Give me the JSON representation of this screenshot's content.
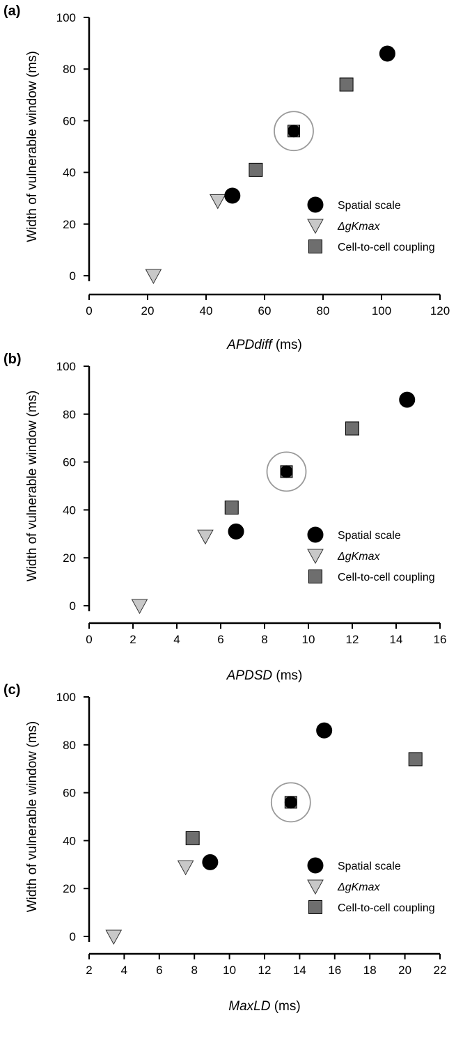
{
  "chart_data": [
    {
      "panel": "(a)",
      "type": "scatter",
      "xlabel_italic": "APDdiff",
      "xlabel_unit": " (ms)",
      "ylabel": "Width of vulnerable window (ms)",
      "xlim": [
        0,
        120
      ],
      "ylim": [
        0,
        100
      ],
      "xticks": [
        0,
        20,
        40,
        60,
        80,
        100,
        120
      ],
      "yticks": [
        0,
        20,
        40,
        60,
        80,
        100
      ],
      "grid": false,
      "legend_position": "lower-right",
      "series": [
        {
          "name": "Spatial scale",
          "marker": "circle",
          "color": "#000000",
          "x": [
            49,
            70,
            102
          ],
          "y": [
            31,
            56,
            86
          ]
        },
        {
          "name": "ΔgKmax",
          "marker": "triangle-down",
          "color": "#c8c8c8",
          "x": [
            22,
            44,
            70
          ],
          "y": [
            0,
            29,
            56
          ]
        },
        {
          "name": "Cell-to-cell coupling",
          "marker": "square",
          "color": "#6e6e6e",
          "x": [
            57,
            70,
            88
          ],
          "y": [
            41,
            56,
            74
          ]
        }
      ],
      "highlight": {
        "marker": "circle-outline",
        "x": 70,
        "y": 56
      }
    },
    {
      "panel": "(b)",
      "type": "scatter",
      "xlabel_italic": "APDSD",
      "xlabel_unit": " (ms)",
      "ylabel": "Width of vulnerable window (ms)",
      "xlim": [
        0,
        16
      ],
      "ylim": [
        0,
        100
      ],
      "xticks": [
        0,
        2,
        4,
        6,
        8,
        10,
        12,
        14,
        16
      ],
      "yticks": [
        0,
        20,
        40,
        60,
        80,
        100
      ],
      "grid": false,
      "legend_position": "lower-right",
      "series": [
        {
          "name": "Spatial scale",
          "marker": "circle",
          "color": "#000000",
          "x": [
            6.7,
            9.0,
            14.5
          ],
          "y": [
            31,
            56,
            86
          ]
        },
        {
          "name": "ΔgKmax",
          "marker": "triangle-down",
          "color": "#c8c8c8",
          "x": [
            2.3,
            5.3,
            9.0
          ],
          "y": [
            0,
            29,
            56
          ]
        },
        {
          "name": "Cell-to-cell coupling",
          "marker": "square",
          "color": "#6e6e6e",
          "x": [
            6.5,
            9.0,
            12.0
          ],
          "y": [
            41,
            56,
            74
          ]
        }
      ],
      "highlight": {
        "marker": "circle-outline",
        "x": 9.0,
        "y": 56
      }
    },
    {
      "panel": "(c)",
      "type": "scatter",
      "xlabel_italic": "MaxLD",
      "xlabel_unit": " (ms)",
      "ylabel": "Width of vulnerable window (ms)",
      "xlim": [
        2,
        22
      ],
      "ylim": [
        0,
        100
      ],
      "xticks": [
        2,
        4,
        6,
        8,
        10,
        12,
        14,
        16,
        18,
        20,
        22
      ],
      "yticks": [
        0,
        20,
        40,
        60,
        80,
        100
      ],
      "grid": false,
      "legend_position": "lower-right",
      "series": [
        {
          "name": "Spatial scale",
          "marker": "circle",
          "color": "#000000",
          "x": [
            8.9,
            13.5,
            15.4
          ],
          "y": [
            31,
            56,
            86
          ]
        },
        {
          "name": "ΔgKmax",
          "marker": "triangle-down",
          "color": "#c8c8c8",
          "x": [
            3.4,
            7.5,
            13.5
          ],
          "y": [
            0,
            29,
            56
          ]
        },
        {
          "name": "Cell-to-cell coupling",
          "marker": "square",
          "color": "#6e6e6e",
          "x": [
            7.9,
            13.5,
            20.6
          ],
          "y": [
            41,
            56,
            74
          ]
        }
      ],
      "highlight": {
        "marker": "circle-outline",
        "x": 13.5,
        "y": 56
      }
    }
  ]
}
